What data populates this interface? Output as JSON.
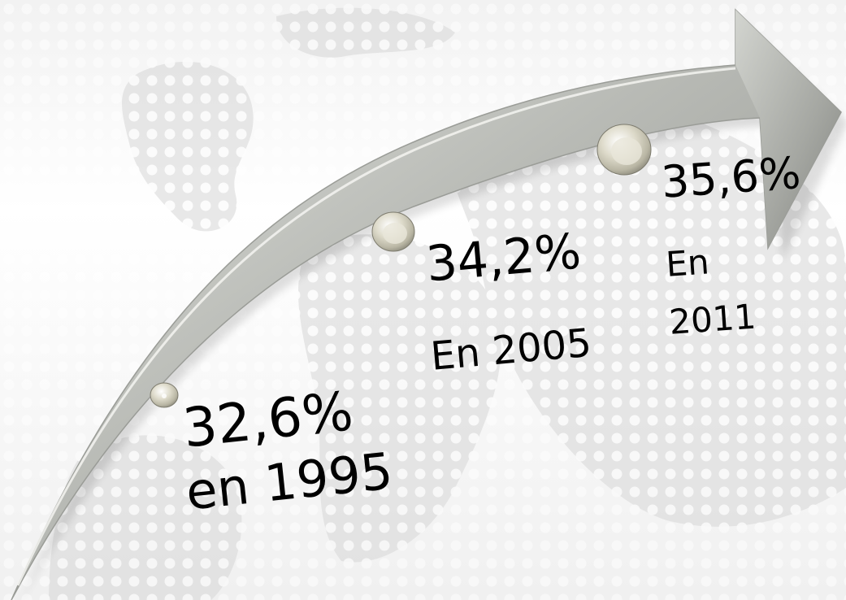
{
  "diagram": {
    "milestones": [
      {
        "value": "32,6%",
        "year": "en 1995"
      },
      {
        "value": "34,2%",
        "year": "En 2005"
      },
      {
        "value": "35,6%",
        "year_line1": "En",
        "year_line2": "2011"
      }
    ],
    "colors": {
      "arrow_light": "#d0d2cd",
      "arrow_mid": "#a9aba6",
      "arrow_dark": "#7c7e79",
      "dots": "#c8c8c8",
      "text": "#000000"
    }
  }
}
